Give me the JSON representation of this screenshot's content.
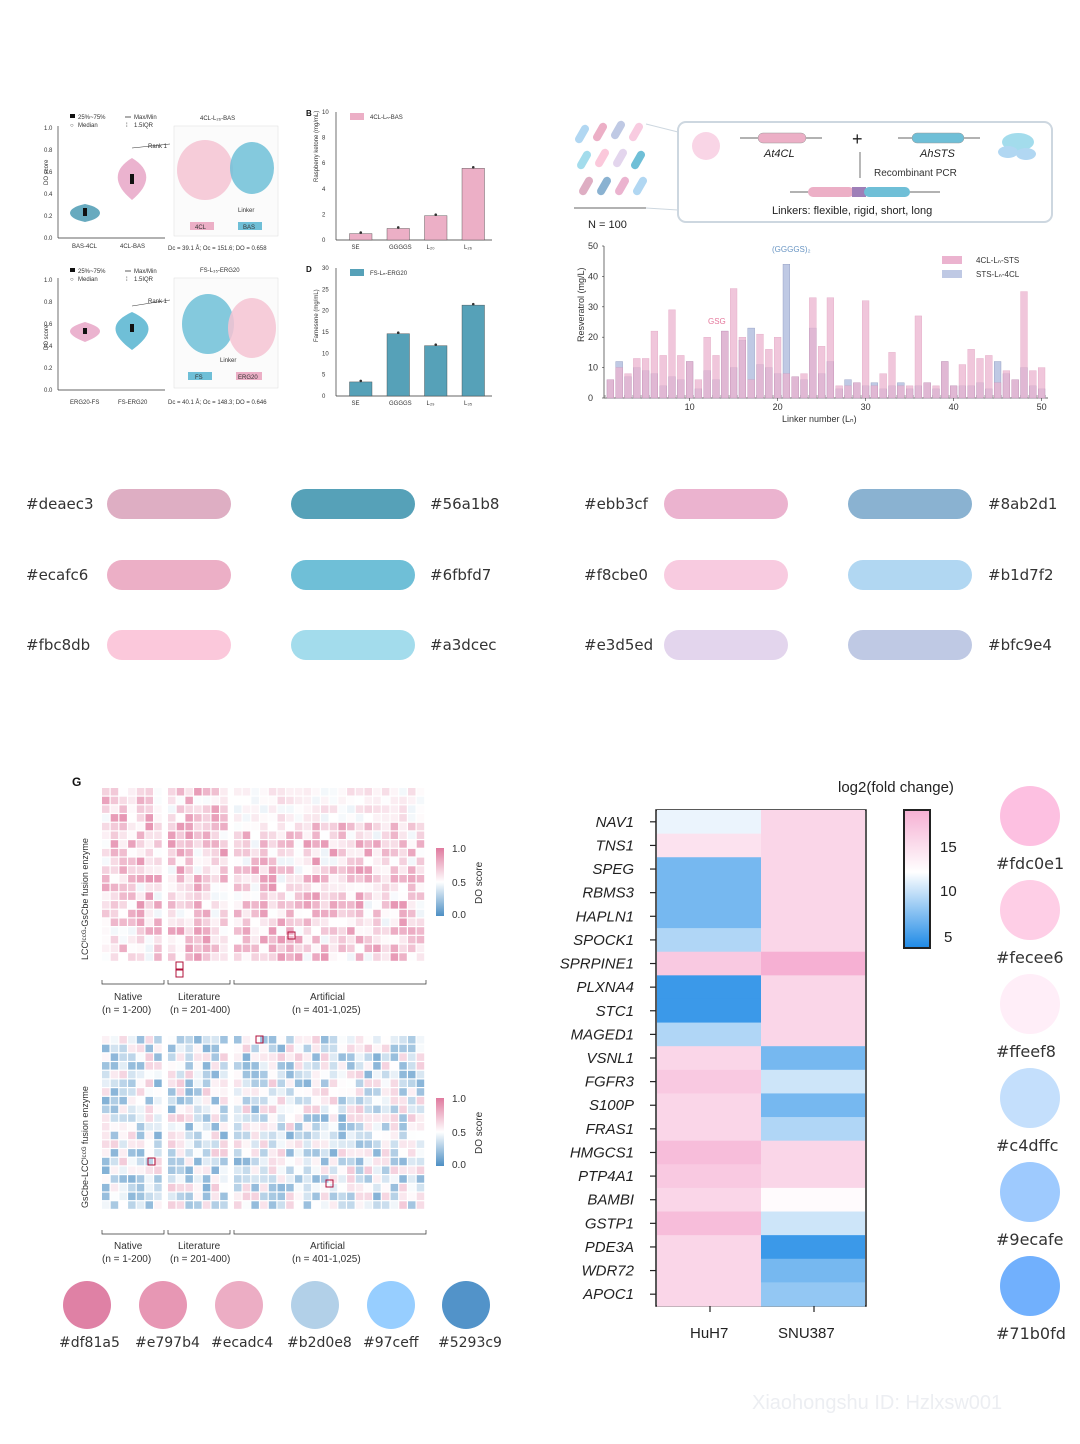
{
  "panelA": {
    "violin1": {
      "legend": [
        "25%~75%",
        "Median",
        "Max/Min",
        "1.5IQR"
      ],
      "yticks": [
        "1.0",
        "0.8",
        "0.6",
        "0.4",
        "0.2",
        "0.0"
      ],
      "ylabel": "DO score",
      "xlabels": [
        "BAS-4CL",
        "4CL-BAS"
      ],
      "rank": "Rank 1"
    },
    "structure1": {
      "title": "4CL-L₂₆-BAS",
      "tags": [
        "4CL",
        "BAS"
      ],
      "linker": "Linker",
      "caption": "Dc = 39.1 Å; Oc = 151.6; DO = 0.658"
    },
    "violin2": {
      "legend": [
        "25%~75%",
        "Median",
        "Max/Min",
        "1.5IQR"
      ],
      "yticks": [
        "1.0",
        "0.8",
        "0.6",
        "0.4",
        "0.2",
        "0.0"
      ],
      "ylabel": "DO score",
      "xlabels": [
        "ERG20-FS",
        "FS-ERG20"
      ],
      "rank": "Rank 1"
    },
    "structure2": {
      "title": "FS-L₃₅-ERG20",
      "tags": [
        "FS",
        "ERG20"
      ],
      "linker": "Linker",
      "caption": "Dc = 40.1 Å; Oc = 148.3; DO = 0.646"
    }
  },
  "panelB": {
    "letter": "B",
    "legend": "4CL-Lₙ-BAS",
    "ylabel": "Raspberry ketone (mg/mL)",
    "yticks": [
      "10",
      "8",
      "6",
      "4",
      "2",
      "0"
    ],
    "categories": [
      "SE",
      "GGGGS",
      "L₂₀",
      "L₂₆"
    ],
    "values": [
      0.5,
      0.9,
      1.9,
      5.6
    ],
    "ymax": 10
  },
  "panelD": {
    "letter": "D",
    "legend": "FS-Lₙ-ERG20",
    "ylabel": "Farnesene (mg/mL)",
    "yticks": [
      "30",
      "25",
      "20",
      "15",
      "10",
      "5",
      "0"
    ],
    "categories": [
      "SE",
      "GGGGS",
      "L₂₉",
      "L₃₅"
    ],
    "values": [
      3.3,
      14.6,
      11.8,
      21.3
    ],
    "ymax": 30
  },
  "schematic": {
    "n": "N = 100",
    "gene1": "At4CL",
    "gene2": "AhSTS",
    "pcr": "Recombinant PCR",
    "linkers": "Linkers: flexible, rigid, short, long"
  },
  "resveratrol": {
    "ylabel": "Resveratrol (mg/L)",
    "xlabel": "Linker number (Lₙ)",
    "yticks": [
      "50",
      "40",
      "30",
      "20",
      "10",
      "0"
    ],
    "xticks": [
      "10",
      "20",
      "30",
      "40",
      "50"
    ],
    "legend": [
      "4CL-Lₙ-STS",
      "STS-Lₙ-4CL"
    ],
    "ann_gsg": "GSG",
    "ann_gggs": "(GGGGS)₂",
    "pink": [
      6,
      10,
      8,
      13,
      13,
      22,
      14,
      29,
      14,
      12,
      6,
      20,
      14,
      22,
      36,
      20,
      6,
      21,
      16,
      20,
      8,
      7,
      8,
      33,
      17,
      33,
      4,
      4,
      5,
      32,
      4,
      8,
      15,
      4,
      4,
      27,
      5,
      4,
      12,
      4,
      11,
      16,
      13,
      14,
      5,
      9,
      6,
      35,
      9,
      10
    ],
    "blue": [
      6,
      12,
      7,
      10,
      9,
      8,
      4,
      7,
      6,
      12,
      3,
      9,
      6,
      22,
      10,
      19,
      23,
      11,
      10,
      8,
      44,
      7,
      6,
      23,
      8,
      12,
      3,
      6,
      5,
      4,
      5,
      3,
      4,
      5,
      3,
      4,
      5,
      3,
      12,
      4,
      4,
      4,
      5,
      3,
      12,
      8,
      6,
      10,
      4,
      3
    ]
  },
  "palette1": [
    {
      "hex": "#deaec3",
      "color": "#deaec3"
    },
    {
      "hex": "#ecafc6",
      "color": "#ecafc6"
    },
    {
      "hex": "#fbc8db",
      "color": "#fbc8db"
    },
    {
      "hex": "#56a1b8",
      "color": "#56a1b8"
    },
    {
      "hex": "#6fbfd7",
      "color": "#6fbfd7"
    },
    {
      "hex": "#a3dcec",
      "color": "#a3dcec"
    },
    {
      "hex": "#ebb3cf",
      "color": "#ebb3cf"
    },
    {
      "hex": "#f8cbe0",
      "color": "#f8cbe0"
    },
    {
      "hex": "#e3d5ed",
      "color": "#e3d5ed"
    },
    {
      "hex": "#8ab2d1",
      "color": "#8ab2d1"
    },
    {
      "hex": "#b1d7f2",
      "color": "#b1d7f2"
    },
    {
      "hex": "#bfc9e4",
      "color": "#bfc9e4"
    }
  ],
  "panelG": {
    "letter": "G",
    "ylabel_top": "LCCᴵᶜᶜᴳ-GsCbe fusion enzyme",
    "ylabel_bottom": "GsCbe-LCCᴵᶜᶜᴳ fusion enzyme",
    "colorbar_ticks": [
      "1.0",
      "0.5",
      "0.0"
    ],
    "colorbar_label": "DO score",
    "groups": [
      "Native",
      "Literature",
      "Artificial"
    ],
    "ranges": [
      "(n = 1-200)",
      "(n = 201-400)",
      "(n = 401-1,025)"
    ]
  },
  "circles_bottom": [
    {
      "hex": "#df81a5",
      "color": "#df81a5"
    },
    {
      "hex": "#e797b4",
      "color": "#e797b4"
    },
    {
      "hex": "#ecadc4",
      "color": "#ecadc4"
    },
    {
      "hex": "#b2d0e8",
      "color": "#b2d0e8"
    },
    {
      "hex": "#97ceff",
      "color": "#97ceff"
    },
    {
      "hex": "#5293c9",
      "color": "#5293c9"
    }
  ],
  "heatmap": {
    "title": "log2(fold change)",
    "genes": [
      "NAV1",
      "TNS1",
      "SPEG",
      "RBMS3",
      "HAPLN1",
      "SPOCK1",
      "SPRPINE1",
      "PLXNA4",
      "STC1",
      "MAGED1",
      "VSNL1",
      "FGFR3",
      "S100P",
      "FRAS1",
      "HMGCS1",
      "PTP4A1",
      "BAMBI",
      "GSTP1",
      "PDE3A",
      "WDR72",
      "APOC1"
    ],
    "columns": [
      "HuH7",
      "SNU387"
    ],
    "scale_ticks": [
      "15",
      "10",
      "5"
    ],
    "huh7": [
      10,
      13,
      6,
      6,
      6,
      8,
      15,
      4,
      4,
      8,
      14,
      15,
      14,
      14,
      16,
      15,
      14,
      16,
      14,
      14,
      14
    ],
    "snu387": [
      14,
      14,
      14,
      14,
      14,
      14,
      17,
      14,
      14,
      14,
      6,
      9,
      6,
      8,
      14,
      14,
      11,
      9,
      4,
      6,
      7
    ]
  },
  "circles_right": [
    {
      "hex": "#fdc0e1",
      "color": "#fdc0e1"
    },
    {
      "hex": "#fecee6",
      "color": "#fecee6"
    },
    {
      "hex": "#ffeef8",
      "color": "#ffeef8"
    },
    {
      "hex": "#c4dffc",
      "color": "#c4dffc"
    },
    {
      "hex": "#9ecafe",
      "color": "#9ecafe"
    },
    {
      "hex": "#71b0fd",
      "color": "#71b0fd"
    }
  ],
  "watermark": "Xiaohongshu ID: Hzlxsw001"
}
